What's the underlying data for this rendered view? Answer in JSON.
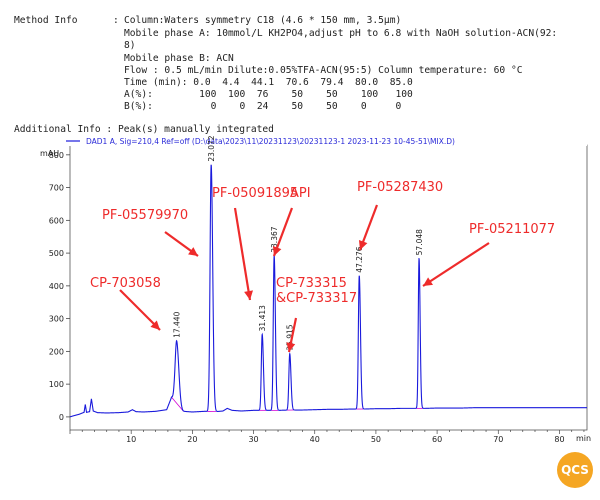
{
  "method_info": {
    "label": "Method Info",
    "sep": ":",
    "lines": [
      "Column:Waters symmetry C18 (4.6 * 150 mm, 3.5µm)",
      "Mobile phase A: 10mmol/L KH2PO4,adjust pH to 6.8 with NaOH solution-ACN(92:",
      "8)",
      "Mobile phase B: ACN",
      "Flow : 0.5 mL/min Dilute:0.05%TFA-ACN(95:5) Column temperature: 60 °C",
      "Time (min): 0.0  4.4  44.1  70.6  79.4  80.0  85.0",
      "A(%):        100  100  76    50    50    100   100",
      "B(%):          0    0  24    50    50    0     0"
    ]
  },
  "additional_info": "Additional Info : Peak(s) manually integrated",
  "chart_data": {
    "type": "line",
    "legend": "DAD1 A, Sig=210,4 Ref=off (D:\\data\\2023\\11\\20231123\\20231123-1 2023-11-23 10-45-51\\MIX.D)",
    "ylabel": "mAU",
    "xlabel": "min",
    "xlim": [
      0,
      84.5
    ],
    "ylim": [
      -40,
      830
    ],
    "xticks": [
      10,
      20,
      30,
      40,
      50,
      60,
      70,
      80
    ],
    "yticks": [
      0,
      100,
      200,
      300,
      400,
      500,
      600,
      700,
      800
    ],
    "baseline": [
      [
        0,
        0
      ],
      [
        0.5,
        3
      ],
      [
        1.5,
        8
      ],
      [
        2.3,
        14
      ],
      [
        2.5,
        38
      ],
      [
        2.7,
        14
      ],
      [
        3.2,
        16
      ],
      [
        3.5,
        55
      ],
      [
        3.8,
        18
      ],
      [
        4.5,
        13
      ],
      [
        6,
        12
      ],
      [
        8,
        13
      ],
      [
        9.5,
        15
      ],
      [
        10.2,
        22
      ],
      [
        10.8,
        16
      ],
      [
        12,
        15
      ],
      [
        14,
        17
      ],
      [
        15.8,
        22
      ],
      [
        16.6,
        60
      ],
      [
        17,
        56
      ],
      [
        17.6,
        27
      ],
      [
        18.5,
        17
      ],
      [
        20,
        15
      ],
      [
        22,
        17
      ],
      [
        23.8,
        16
      ],
      [
        25,
        18
      ],
      [
        25.7,
        26
      ],
      [
        26.5,
        20
      ],
      [
        28,
        18
      ],
      [
        30,
        20
      ],
      [
        32,
        20
      ],
      [
        34,
        20
      ],
      [
        36,
        21
      ],
      [
        38,
        21
      ],
      [
        40,
        22
      ],
      [
        42,
        23
      ],
      [
        44,
        23
      ],
      [
        46,
        24
      ],
      [
        48,
        24
      ],
      [
        50,
        25
      ],
      [
        52,
        25
      ],
      [
        54,
        26
      ],
      [
        56,
        26
      ],
      [
        58,
        26
      ],
      [
        60,
        27
      ],
      [
        62,
        27
      ],
      [
        64,
        27
      ],
      [
        66,
        28
      ],
      [
        68,
        28
      ],
      [
        70,
        28
      ],
      [
        72,
        28
      ],
      [
        74,
        28
      ],
      [
        76,
        28
      ],
      [
        78,
        28
      ],
      [
        80,
        28
      ],
      [
        82,
        28
      ],
      [
        84.5,
        28
      ]
    ],
    "peaks": [
      {
        "rt": 17.44,
        "height": 232,
        "label": "17.440",
        "width": 0.28
      },
      {
        "rt": 23.072,
        "height": 770,
        "label": "23.072",
        "width": 0.2
      },
      {
        "rt": 31.413,
        "height": 252,
        "label": "31.413",
        "width": 0.16
      },
      {
        "rt": 33.367,
        "height": 492,
        "label": "33.367",
        "width": 0.16
      },
      {
        "rt": 35.915,
        "height": 193,
        "label": "35.915",
        "width": 0.16
      },
      {
        "rt": 47.276,
        "height": 431,
        "label": "47.276",
        "width": 0.16
      },
      {
        "rt": 57.048,
        "height": 484,
        "label": "57.048",
        "width": 0.14
      }
    ],
    "annotations": [
      {
        "text": "CP-703058",
        "peak": 0
      },
      {
        "text": "PF-05579970",
        "peak": 1
      },
      {
        "text": "PF-05091895",
        "peak": 2
      },
      {
        "text": "API",
        "peak": 3
      },
      {
        "text": "CP-733315",
        "peak": 4
      },
      {
        "text": "&CP-733317",
        "peak": 4
      },
      {
        "text": "PF-05287430",
        "peak": 5
      },
      {
        "text": "PF-05211077",
        "peak": 6
      }
    ],
    "colors": {
      "trace": "#1a1adc",
      "annotation": "#ee2b2b",
      "integration": "#d400d4",
      "legend_text": "#2a2ad8"
    }
  },
  "logo": {
    "text": "QCS",
    "color": "#f5a623"
  }
}
